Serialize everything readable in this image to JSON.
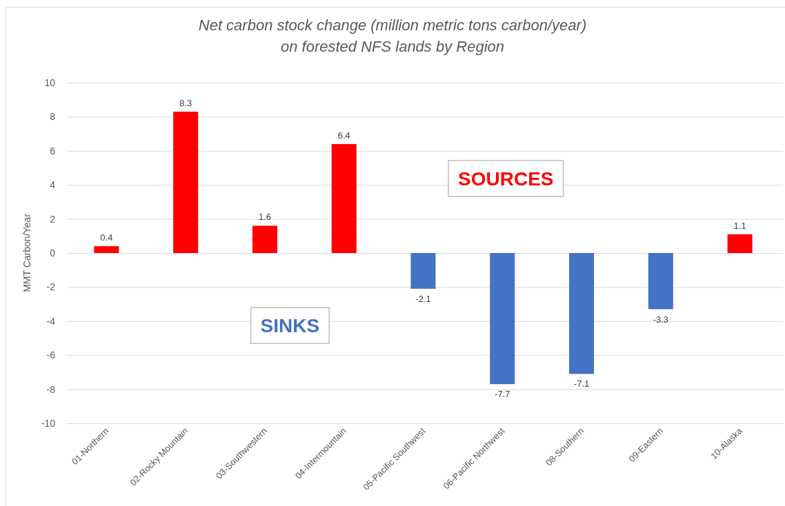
{
  "chart_data": {
    "type": "bar",
    "title": "Net carbon stock change (million metric tons carbon/year)\non forested NFS lands by Region",
    "ylabel": "MMT Carbon/Year",
    "categories": [
      "01-Northern",
      "02-Rocky Mountain",
      "03-Southwestern",
      "04-Intermountain",
      "05-Pacific Southwest",
      "06-Pacific Northwest",
      "08-Southern",
      "09-Eastern",
      "10-Alaska"
    ],
    "values": [
      0.4,
      8.3,
      1.6,
      6.4,
      -2.1,
      -7.7,
      -7.1,
      -3.3,
      1.1
    ],
    "colors": [
      "#ff0000",
      "#ff0000",
      "#ff0000",
      "#ff0000",
      "#4472c4",
      "#4472c4",
      "#4472c4",
      "#4472c4",
      "#ff0000"
    ],
    "ylim": [
      -10,
      10
    ],
    "yticks": [
      -10,
      -8,
      -6,
      -4,
      -2,
      0,
      2,
      4,
      6,
      8,
      10
    ],
    "grid": "y",
    "data_labels": true,
    "annotations": [
      "SOURCES",
      "SINKS"
    ]
  }
}
